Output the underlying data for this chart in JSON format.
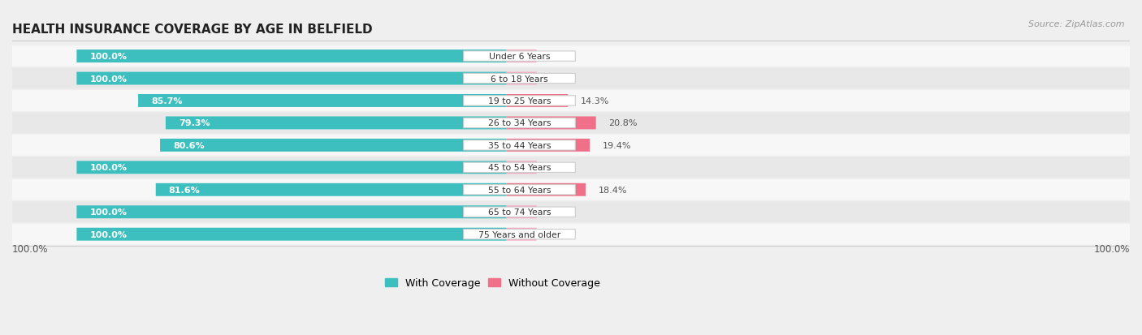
{
  "title": "HEALTH INSURANCE COVERAGE BY AGE IN BELFIELD",
  "source": "Source: ZipAtlas.com",
  "categories": [
    "Under 6 Years",
    "6 to 18 Years",
    "19 to 25 Years",
    "26 to 34 Years",
    "35 to 44 Years",
    "45 to 54 Years",
    "55 to 64 Years",
    "65 to 74 Years",
    "75 Years and older"
  ],
  "with_coverage": [
    100.0,
    100.0,
    85.7,
    79.3,
    80.6,
    100.0,
    81.6,
    100.0,
    100.0
  ],
  "without_coverage": [
    0.0,
    0.0,
    14.3,
    20.8,
    19.4,
    0.0,
    18.4,
    0.0,
    0.0
  ],
  "coverage_color": "#3DBFBF",
  "no_coverage_color": "#F0708A",
  "no_coverage_light_color": "#F5AAC0",
  "background_color": "#EFEFEF",
  "row_bg_even": "#F7F7F7",
  "row_bg_odd": "#E8E8E8",
  "legend_coverage_color": "#3DBFBF",
  "legend_no_coverage_color": "#F0708A"
}
